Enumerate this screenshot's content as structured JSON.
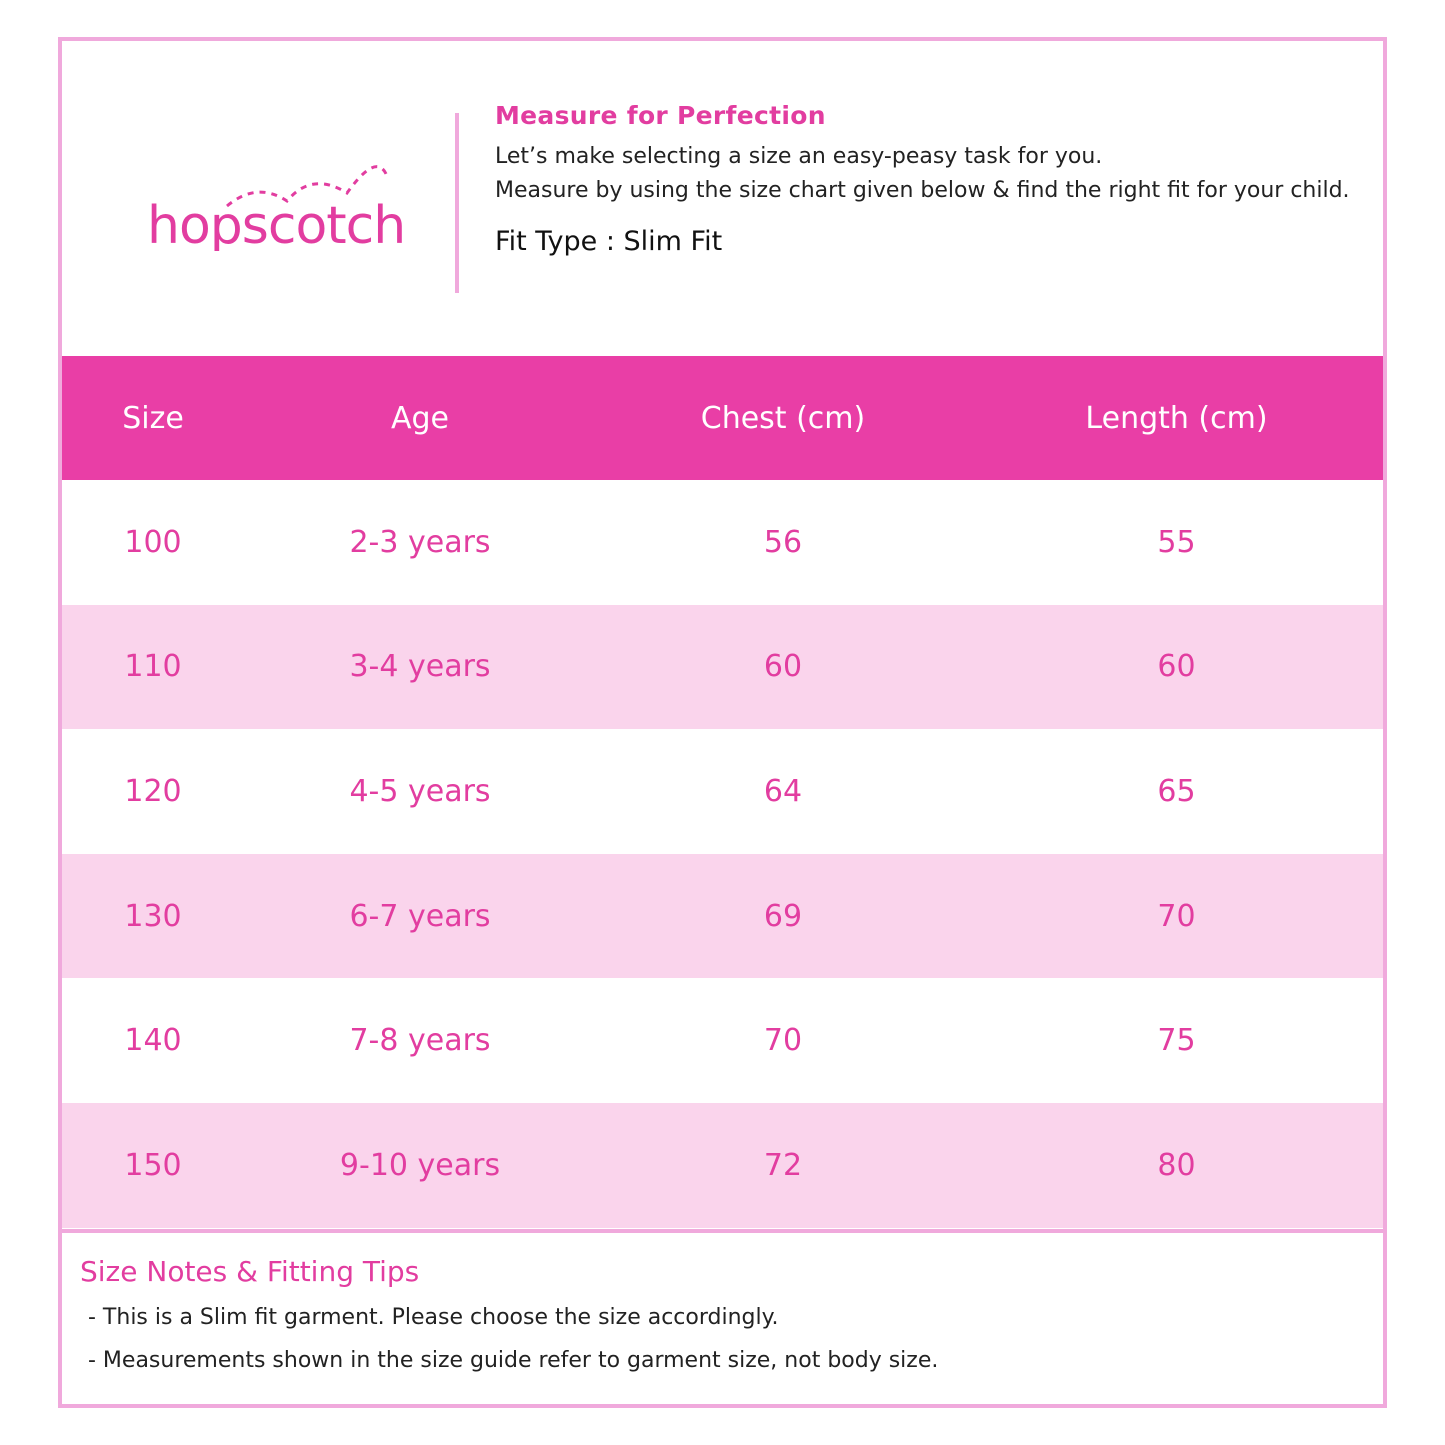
{
  "brand": {
    "logo_text": "hopscotch",
    "color": "#e23da0"
  },
  "intro": {
    "title": "Measure for Perfection",
    "line1": "Let’s make selecting a size an easy-peasy task for you.",
    "line2": "Measure by using the size chart given below & find the right fit for your child.",
    "fit_type": "Fit Type : Slim Fit"
  },
  "table": {
    "headers": [
      "Size",
      "Age",
      "Chest (cm)",
      "Length (cm)"
    ],
    "rows": [
      [
        "100",
        "2-3 years",
        "56",
        "55"
      ],
      [
        "110",
        "3-4 years",
        "60",
        "60"
      ],
      [
        "120",
        "4-5 years",
        "64",
        "65"
      ],
      [
        "130",
        "6-7 years",
        "69",
        "70"
      ],
      [
        "140",
        "7-8 years",
        "70",
        "75"
      ],
      [
        "150",
        "9-10 years",
        "72",
        "80"
      ]
    ],
    "header_color": "#e93ea6",
    "alt_row_color": "#fad4ec"
  },
  "notes": {
    "title": "Size Notes & Fitting Tips",
    "items": [
      "- This is a Slim fit garment. Please choose the size accordingly.",
      "- Measurements shown in the size guide refer to garment size, not body size."
    ]
  }
}
